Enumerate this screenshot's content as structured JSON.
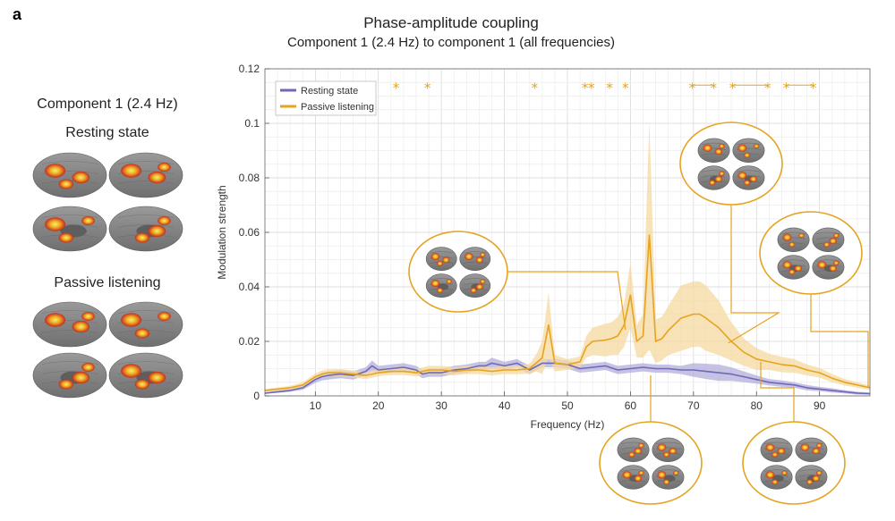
{
  "panel_letter": "a",
  "left": {
    "title": "Component 1 (2.4 Hz)",
    "groups": [
      {
        "label": "Resting state"
      },
      {
        "label": "Passive listening"
      }
    ]
  },
  "chart_data": {
    "type": "line",
    "title": "Phase-amplitude coupling",
    "subtitle": "Component 1 (2.4 Hz) to component 1 (all frequencies)",
    "xlabel": "Frequency (Hz)",
    "ylabel": "Modulation strength",
    "xlim": [
      2,
      98
    ],
    "ylim": [
      0,
      0.12
    ],
    "x_ticks": [
      10,
      20,
      30,
      40,
      50,
      60,
      70,
      80,
      90
    ],
    "y_ticks": [
      0,
      0.02,
      0.04,
      0.06,
      0.08,
      0.1,
      0.12
    ],
    "y_tick_labels": [
      "0",
      "0.02",
      "0.04",
      "0.06",
      "0.08",
      "0.1",
      "0.12"
    ],
    "grid": true,
    "legend_position": "top-left",
    "series": [
      {
        "name": "Resting state",
        "color": "#6f68b8",
        "band_color": "#b3aedb",
        "x": [
          2,
          4,
          6,
          8,
          10,
          11,
          12,
          14,
          16,
          18,
          19,
          20,
          22,
          24,
          26,
          27,
          28,
          30,
          32,
          34,
          36,
          37,
          38,
          40,
          42,
          44,
          46,
          48,
          50,
          52,
          54,
          56,
          58,
          60,
          62,
          64,
          66,
          68,
          70,
          72,
          74,
          76,
          78,
          80,
          82,
          84,
          86,
          88,
          90,
          92,
          94,
          96,
          98
        ],
        "values": [
          0.001,
          0.0015,
          0.002,
          0.003,
          0.006,
          0.007,
          0.0075,
          0.008,
          0.0075,
          0.009,
          0.011,
          0.0095,
          0.01,
          0.0105,
          0.0095,
          0.008,
          0.0085,
          0.0085,
          0.0095,
          0.01,
          0.011,
          0.011,
          0.012,
          0.011,
          0.012,
          0.0095,
          0.012,
          0.012,
          0.0115,
          0.01,
          0.0105,
          0.011,
          0.0095,
          0.01,
          0.0105,
          0.01,
          0.01,
          0.0095,
          0.0095,
          0.009,
          0.0085,
          0.008,
          0.007,
          0.006,
          0.005,
          0.0045,
          0.004,
          0.003,
          0.0025,
          0.002,
          0.0015,
          0.001,
          0.0008
        ],
        "band_width": [
          0.0003,
          0.0004,
          0.0005,
          0.0008,
          0.0012,
          0.0014,
          0.0015,
          0.0015,
          0.0015,
          0.0015,
          0.002,
          0.0015,
          0.0015,
          0.0015,
          0.0015,
          0.0015,
          0.0015,
          0.0015,
          0.0015,
          0.0015,
          0.0015,
          0.0015,
          0.002,
          0.0015,
          0.0015,
          0.0015,
          0.0015,
          0.0015,
          0.0015,
          0.0015,
          0.0015,
          0.0015,
          0.0015,
          0.0015,
          0.0015,
          0.0015,
          0.0015,
          0.0015,
          0.0025,
          0.0028,
          0.003,
          0.0025,
          0.002,
          0.0015,
          0.0012,
          0.0012,
          0.001,
          0.001,
          0.0008,
          0.0008,
          0.0006,
          0.0005,
          0.0004
        ]
      },
      {
        "name": "Passive listening",
        "color": "#e6a31f",
        "band_color": "#f6d9a0",
        "x": [
          2,
          4,
          6,
          8,
          10,
          11,
          12,
          14,
          16,
          18,
          20,
          22,
          24,
          26,
          28,
          30,
          32,
          34,
          36,
          38,
          40,
          42,
          44,
          45,
          46,
          47,
          48,
          50,
          52,
          53,
          54,
          56,
          57,
          58,
          59,
          60,
          61,
          62,
          63,
          64,
          65,
          66,
          68,
          70,
          71,
          72,
          74,
          76,
          78,
          80,
          82,
          84,
          86,
          88,
          90,
          92,
          94,
          96,
          98
        ],
        "values": [
          0.002,
          0.0025,
          0.003,
          0.004,
          0.007,
          0.008,
          0.0085,
          0.0085,
          0.008,
          0.0075,
          0.0085,
          0.009,
          0.009,
          0.0085,
          0.0095,
          0.0095,
          0.009,
          0.0095,
          0.0095,
          0.009,
          0.0095,
          0.0095,
          0.01,
          0.012,
          0.014,
          0.026,
          0.012,
          0.0115,
          0.0125,
          0.018,
          0.02,
          0.0205,
          0.021,
          0.022,
          0.026,
          0.037,
          0.02,
          0.022,
          0.059,
          0.02,
          0.021,
          0.024,
          0.0285,
          0.03,
          0.03,
          0.0285,
          0.025,
          0.02,
          0.016,
          0.0135,
          0.0125,
          0.0115,
          0.011,
          0.0095,
          0.0085,
          0.0065,
          0.005,
          0.004,
          0.003
        ],
        "band_width": [
          0.0005,
          0.0006,
          0.0007,
          0.001,
          0.0012,
          0.0013,
          0.0013,
          0.0013,
          0.0013,
          0.0013,
          0.0013,
          0.0014,
          0.0014,
          0.0014,
          0.0015,
          0.0015,
          0.0015,
          0.0015,
          0.0015,
          0.0015,
          0.0015,
          0.0016,
          0.0018,
          0.003,
          0.006,
          0.012,
          0.003,
          0.002,
          0.002,
          0.004,
          0.005,
          0.006,
          0.006,
          0.007,
          0.008,
          0.012,
          0.006,
          0.008,
          0.042,
          0.008,
          0.008,
          0.009,
          0.012,
          0.012,
          0.012,
          0.012,
          0.01,
          0.007,
          0.005,
          0.004,
          0.003,
          0.0028,
          0.0025,
          0.002,
          0.0018,
          0.0015,
          0.0012,
          0.001,
          0.0008
        ]
      }
    ],
    "significance_markers": {
      "symbol": "*",
      "y": 0.114,
      "x": [
        22.8,
        27.8,
        44.8,
        52.8,
        53.8,
        56.7,
        59.2,
        69.8,
        73.2,
        76.2,
        81.8,
        84.7,
        89.0
      ],
      "connected_ranges": [
        [
          69.8,
          73.2
        ],
        [
          76.2,
          81.8
        ],
        [
          84.7,
          89.0
        ]
      ]
    },
    "brain_callouts": [
      {
        "name": "callout-59hz",
        "x": 59.2
      },
      {
        "name": "callout-76hz",
        "x": 75.5
      },
      {
        "name": "callout-86hz",
        "x": 87.5
      },
      {
        "name": "callout-62hz",
        "x": 62.5
      },
      {
        "name": "callout-82hz",
        "x": 81.5
      }
    ]
  }
}
